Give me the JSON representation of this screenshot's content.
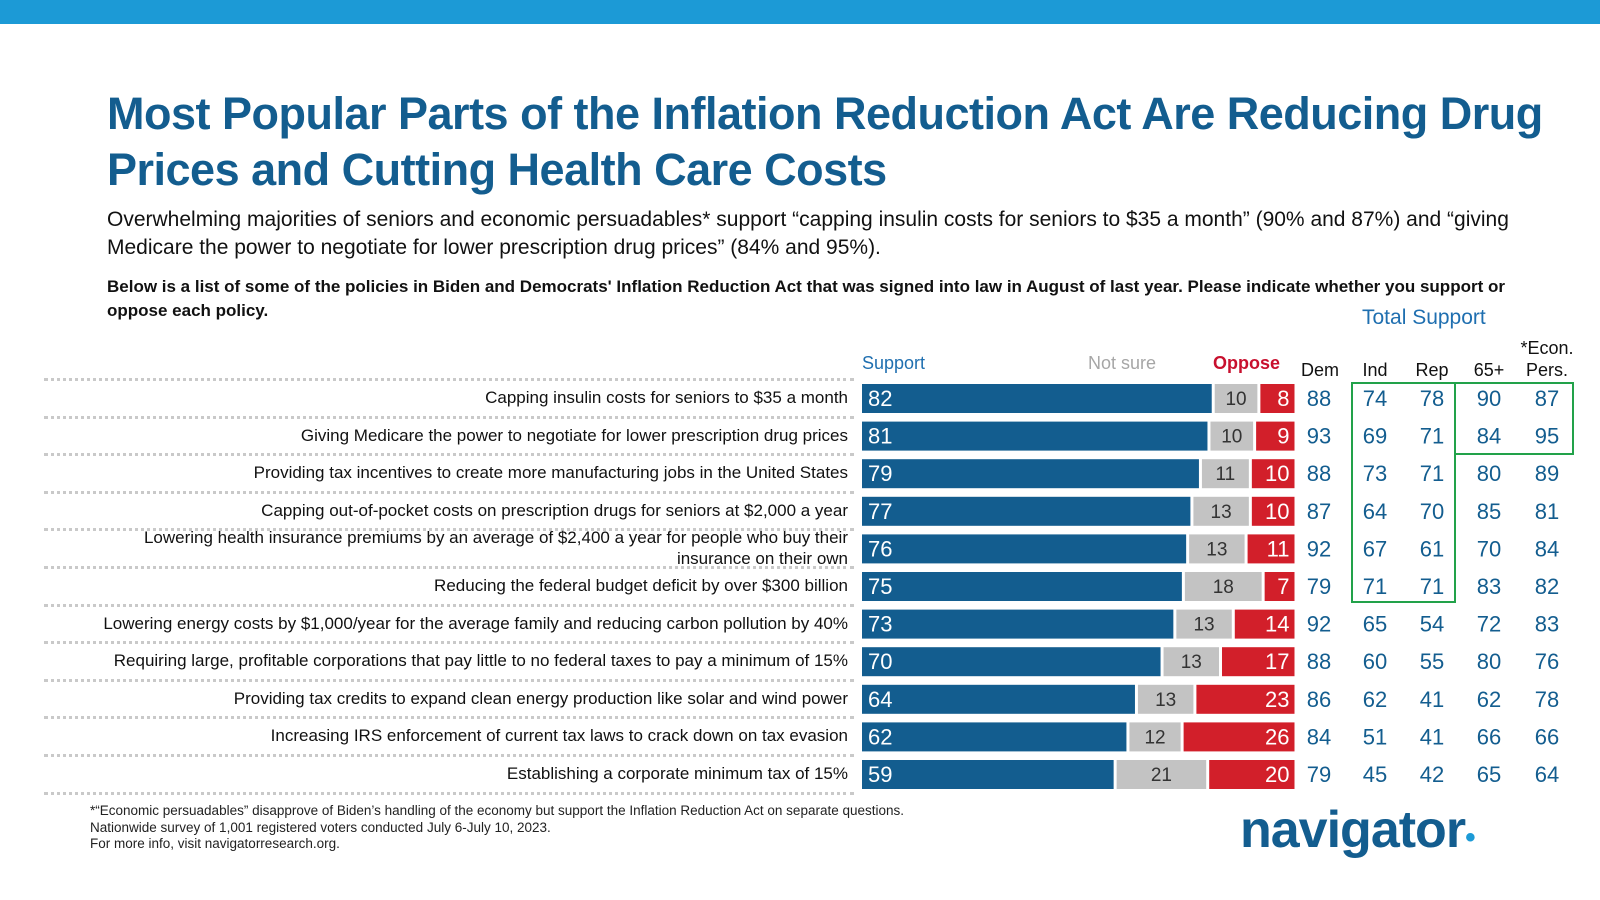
{
  "title": "Most Popular Parts of the Inflation Reduction Act Are Reducing Drug Prices and Cutting Health Care Costs",
  "subtitle": "Overwhelming majorities of seniors and economic persuadables* support “capping insulin costs for seniors to $35 a month” (90% and 87%) and “giving Medicare the power to negotiate for lower prescription drug prices” (84% and 95%).",
  "question": "Below is a list of some of the policies in Biden and Democrats' Inflation Reduction Act that was signed into law in August of last year. Please indicate whether you support or oppose each policy.",
  "total_support_label": "Total Support",
  "legend": {
    "support": "Support",
    "not_sure": "Not sure",
    "oppose": "Oppose"
  },
  "columns": {
    "dem": "Dem",
    "ind": "Ind",
    "rep": "Rep",
    "age65": "65+",
    "econ_line1": "*Econ.",
    "econ_line2": "Pers."
  },
  "colors": {
    "support": "#135d8f",
    "not_sure": "#c3c3c3",
    "oppose": "#d21f2a",
    "subgroup_text": "#135d8f",
    "highlight_box": "#22a24a",
    "top_bar": "#1c9ad6"
  },
  "footnote": {
    "line1": "*“Economic persuadables” disapprove of Biden’s handling of the economy but support the Inflation Reduction Act on separate questions.",
    "line2": "Nationwide survey of 1,001 registered voters conducted July 6-July 10, 2023.",
    "line3": "For more info, visit navigatorresearch.org."
  },
  "logo": {
    "text": "navigator",
    "dot": "•"
  },
  "chart_data": {
    "type": "bar",
    "orientation": "horizontal-stacked",
    "series": [
      {
        "name": "Support",
        "values": [
          82,
          81,
          79,
          77,
          76,
          75,
          73,
          70,
          64,
          62,
          59
        ]
      },
      {
        "name": "Not sure",
        "values": [
          10,
          10,
          11,
          13,
          13,
          18,
          13,
          13,
          13,
          12,
          21
        ]
      },
      {
        "name": "Oppose",
        "values": [
          8,
          9,
          10,
          10,
          11,
          7,
          14,
          17,
          23,
          26,
          20
        ]
      }
    ],
    "categories": [
      "Capping insulin costs for seniors to $35 a month",
      "Giving Medicare the power to negotiate for lower prescription drug prices",
      "Providing tax incentives to create more manufacturing jobs in the United States",
      "Capping out-of-pocket costs on prescription drugs for seniors at $2,000 a year",
      "Lowering health insurance premiums by an average of $2,400 a year for people who buy their insurance on their own",
      "Reducing the federal budget deficit by over $300 billion",
      "Lowering energy costs by $1,000/year for the average family and reducing carbon pollution by 40%",
      "Requiring large, profitable corporations that pay little to no federal taxes to pay a minimum of 15%",
      "Providing tax credits to expand clean energy production like solar and wind power",
      "Increasing IRS enforcement of current tax laws to crack down on tax evasion",
      "Establishing a corporate minimum tax of 15%"
    ],
    "label_lines": [
      [
        "Capping insulin costs for seniors to $35 a month"
      ],
      [
        "Giving Medicare the power to negotiate for lower prescription drug prices"
      ],
      [
        "Providing tax incentives to create more manufacturing jobs in the United States"
      ],
      [
        "Capping out-of-pocket costs on prescription drugs for seniors at $2,000 a year"
      ],
      [
        "Lowering health insurance premiums by an average of $2,400 a year for people who buy their",
        "insurance on their own"
      ],
      [
        "Reducing the federal budget deficit by over $300 billion"
      ],
      [
        "Lowering energy costs by $1,000/year for the average family and reducing carbon pollution by 40%"
      ],
      [
        "Requiring large, profitable corporations that pay little to no federal taxes to pay a minimum of 15%"
      ],
      [
        "Providing tax credits to expand clean energy production like solar and wind power"
      ],
      [
        "Increasing IRS enforcement of current tax laws to crack down on tax evasion"
      ],
      [
        "Establishing a corporate minimum tax of 15%"
      ]
    ],
    "total_support": {
      "Dem": [
        88,
        93,
        88,
        87,
        92,
        79,
        92,
        88,
        86,
        84,
        79
      ],
      "Ind": [
        74,
        69,
        73,
        64,
        67,
        71,
        65,
        60,
        62,
        51,
        45
      ],
      "Rep": [
        78,
        71,
        71,
        70,
        61,
        71,
        54,
        55,
        41,
        41,
        42
      ],
      "65+": [
        90,
        84,
        80,
        85,
        70,
        83,
        72,
        80,
        62,
        66,
        65
      ],
      "*Econ. Pers.": [
        87,
        95,
        89,
        81,
        84,
        82,
        83,
        76,
        78,
        66,
        64
      ]
    },
    "xlim": [
      0,
      100
    ],
    "legend_position": "top"
  }
}
